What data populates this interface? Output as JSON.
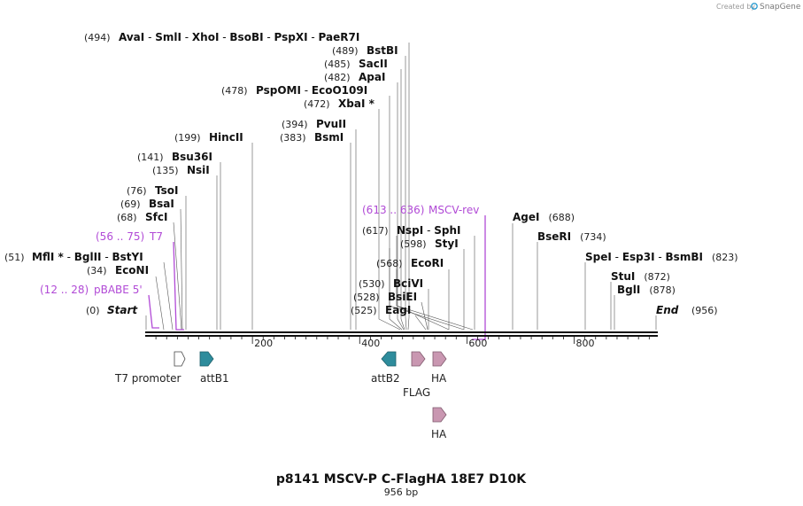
{
  "title": "p8141 MSCV-P C-FlagHA 18E7 D10K",
  "subtitle": "956 bp",
  "credit": {
    "created_by": "Created by",
    "brand": "SnapGene"
  },
  "map_length": 956,
  "scale_ticks": [
    "200",
    "400",
    "600",
    "800"
  ],
  "ends": {
    "start_label": "Start",
    "start_pos": "(0)",
    "end_label": "End",
    "end_pos": "(956)"
  },
  "enzyme_labels": [
    {
      "pos": "(494)",
      "names": [
        "AvaI",
        "SmlI",
        "XhoI",
        "BsoBI",
        "PspXI",
        "PaeR7I"
      ]
    },
    {
      "pos": "(489)",
      "names": [
        "BstBI"
      ]
    },
    {
      "pos": "(485)",
      "names": [
        "SacII"
      ]
    },
    {
      "pos": "(482)",
      "names": [
        "ApaI"
      ]
    },
    {
      "pos": "(478)",
      "names": [
        "PspOMI",
        "EcoO109I"
      ]
    },
    {
      "pos": "(472)",
      "names": [
        "XbaI *"
      ]
    },
    {
      "pos": "(394)",
      "names": [
        "PvuII"
      ]
    },
    {
      "pos": "(383)",
      "names": [
        "BsmI"
      ]
    },
    {
      "pos": "(199)",
      "names": [
        "HincII"
      ]
    },
    {
      "pos": "(141)",
      "names": [
        "Bsu36I"
      ]
    },
    {
      "pos": "(135)",
      "names": [
        "NsiI"
      ]
    },
    {
      "pos": "(76)",
      "names": [
        "TsoI"
      ]
    },
    {
      "pos": "(69)",
      "names": [
        "BsaI"
      ]
    },
    {
      "pos": "(68)",
      "names": [
        "SfcI"
      ]
    },
    {
      "pos": "(51)",
      "names": [
        "MflI *",
        "BglII",
        "BstYI"
      ]
    },
    {
      "pos": "(34)",
      "names": [
        "EcoNI"
      ]
    },
    {
      "pos": "(617)",
      "names": [
        "NspI",
        "SphI"
      ]
    },
    {
      "pos": "(598)",
      "names": [
        "StyI"
      ]
    },
    {
      "pos": "(568)",
      "names": [
        "EcoRI"
      ]
    },
    {
      "pos": "(530)",
      "names": [
        "BciVI"
      ]
    },
    {
      "pos": "(528)",
      "names": [
        "BsiEI"
      ]
    },
    {
      "pos": "(525)",
      "names": [
        "EagI"
      ]
    },
    {
      "pos": "(688)",
      "names": [
        "AgeI"
      ]
    },
    {
      "pos": "(734)",
      "names": [
        "BseRI"
      ]
    },
    {
      "pos": "(823)",
      "names": [
        "SpeI",
        "Esp3I",
        "BsmBI"
      ]
    },
    {
      "pos": "(872)",
      "names": [
        "StuI"
      ]
    },
    {
      "pos": "(878)",
      "names": [
        "BglI"
      ]
    }
  ],
  "primers": [
    {
      "range": "(613 .. 636)",
      "name": "MSCV-rev",
      "start": 613,
      "end": 636
    },
    {
      "range": "(56 .. 75)",
      "name": "T7",
      "start": 56,
      "end": 75
    },
    {
      "range": "(12 .. 28)",
      "name": "pBABE 5'",
      "start": 12,
      "end": 28
    }
  ],
  "features": [
    {
      "name": "T7 promoter",
      "start": 56,
      "end": 75,
      "direction": "forward",
      "color": "#ffffff"
    },
    {
      "name": "attB1",
      "start": 101,
      "end": 125,
      "direction": "forward",
      "color": "#2e8c9c"
    },
    {
      "name": "attB2",
      "start": 443,
      "end": 467,
      "direction": "reverse",
      "color": "#2e8c9c"
    },
    {
      "name": "FLAG",
      "start": 496,
      "end": 519,
      "direction": "forward",
      "color": "#c997b1"
    },
    {
      "name": "HA",
      "start": 535,
      "end": 562,
      "direction": "forward",
      "color": "#c997b1"
    },
    {
      "name": "HA",
      "start": 535,
      "end": 562,
      "direction": "forward",
      "color": "#c997b1"
    }
  ]
}
